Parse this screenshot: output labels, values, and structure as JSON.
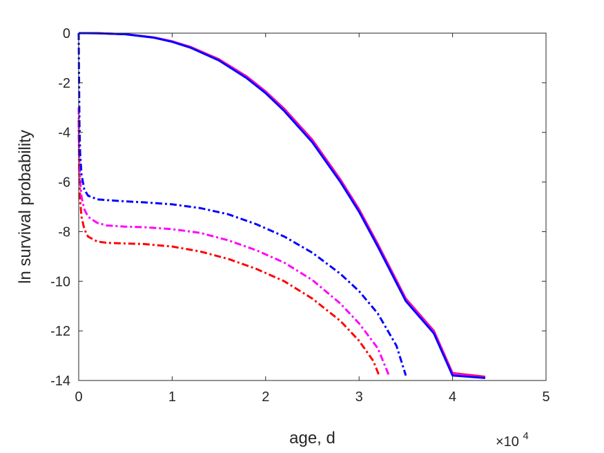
{
  "chart_data": {
    "type": "line",
    "xlabel": "age, d",
    "ylabel": "ln survival probability",
    "x_multiplier": {
      "base": "×10",
      "exponent": "4"
    },
    "xlim": [
      0,
      50000
    ],
    "ylim": [
      -14,
      0
    ],
    "xticks": [
      0,
      10000,
      20000,
      30000,
      40000,
      50000
    ],
    "xtick_labels": [
      "0",
      "1",
      "2",
      "3",
      "4",
      "5"
    ],
    "yticks": [
      0,
      -2,
      -4,
      -6,
      -8,
      -10,
      -12,
      -14
    ],
    "ytick_labels": [
      "0",
      "-2",
      "-4",
      "-6",
      "-8",
      "-10",
      "-12",
      "-14"
    ],
    "grid": false,
    "box": true,
    "series": [
      {
        "color": "#ff0000",
        "style": "solid",
        "points": [
          [
            0,
            0
          ],
          [
            2000,
            -0.003
          ],
          [
            5000,
            -0.04
          ],
          [
            8000,
            -0.17
          ],
          [
            10000,
            -0.33
          ],
          [
            12000,
            -0.56
          ],
          [
            15000,
            -1.05
          ],
          [
            18000,
            -1.75
          ],
          [
            20000,
            -2.35
          ],
          [
            22000,
            -3.05
          ],
          [
            25000,
            -4.3
          ],
          [
            28000,
            -5.9
          ],
          [
            30000,
            -7.1
          ],
          [
            32000,
            -8.5
          ],
          [
            35000,
            -10.7
          ],
          [
            38000,
            -12.0
          ],
          [
            40000,
            -13.7
          ],
          [
            43500,
            -13.85
          ]
        ]
      },
      {
        "color": "#ff00ff",
        "style": "solid",
        "points": [
          [
            0,
            0
          ],
          [
            2000,
            -0.003
          ],
          [
            5000,
            -0.04
          ],
          [
            8000,
            -0.17
          ],
          [
            10000,
            -0.33
          ],
          [
            12000,
            -0.57
          ],
          [
            15000,
            -1.07
          ],
          [
            18000,
            -1.77
          ],
          [
            20000,
            -2.37
          ],
          [
            22000,
            -3.08
          ],
          [
            25000,
            -4.33
          ],
          [
            28000,
            -5.93
          ],
          [
            30000,
            -7.13
          ],
          [
            32000,
            -8.53
          ],
          [
            35000,
            -10.73
          ],
          [
            38000,
            -12.03
          ],
          [
            40000,
            -13.73
          ],
          [
            43500,
            -13.88
          ]
        ]
      },
      {
        "color": "#0000ff",
        "style": "solid",
        "points": [
          [
            0,
            0
          ],
          [
            2000,
            -0.003
          ],
          [
            5000,
            -0.045
          ],
          [
            8000,
            -0.18
          ],
          [
            10000,
            -0.35
          ],
          [
            12000,
            -0.59
          ],
          [
            15000,
            -1.1
          ],
          [
            18000,
            -1.82
          ],
          [
            20000,
            -2.42
          ],
          [
            22000,
            -3.14
          ],
          [
            25000,
            -4.4
          ],
          [
            28000,
            -6.0
          ],
          [
            30000,
            -7.2
          ],
          [
            32000,
            -8.6
          ],
          [
            35000,
            -10.8
          ],
          [
            38000,
            -12.1
          ],
          [
            40000,
            -13.8
          ],
          [
            43500,
            -13.9
          ]
        ]
      },
      {
        "color": "#ff0000",
        "style": "dashdot",
        "points": [
          [
            0,
            -3.5
          ],
          [
            50,
            -5.6
          ],
          [
            150,
            -6.7
          ],
          [
            300,
            -7.4
          ],
          [
            600,
            -7.9
          ],
          [
            1000,
            -8.2
          ],
          [
            2000,
            -8.4
          ],
          [
            3000,
            -8.45
          ],
          [
            5000,
            -8.48
          ],
          [
            7000,
            -8.5
          ],
          [
            10000,
            -8.6
          ],
          [
            13000,
            -8.8
          ],
          [
            16000,
            -9.1
          ],
          [
            19000,
            -9.5
          ],
          [
            22000,
            -10.0
          ],
          [
            25000,
            -10.7
          ],
          [
            28000,
            -11.6
          ],
          [
            30000,
            -12.4
          ],
          [
            31500,
            -13.2
          ],
          [
            32200,
            -13.85
          ]
        ]
      },
      {
        "color": "#ff00ff",
        "style": "dashdot",
        "points": [
          [
            0,
            -3.0
          ],
          [
            50,
            -4.8
          ],
          [
            150,
            -5.9
          ],
          [
            300,
            -6.6
          ],
          [
            600,
            -7.1
          ],
          [
            1000,
            -7.4
          ],
          [
            2000,
            -7.65
          ],
          [
            3000,
            -7.75
          ],
          [
            5000,
            -7.8
          ],
          [
            7000,
            -7.82
          ],
          [
            10000,
            -7.9
          ],
          [
            13000,
            -8.05
          ],
          [
            16000,
            -8.35
          ],
          [
            19000,
            -8.75
          ],
          [
            22000,
            -9.25
          ],
          [
            25000,
            -9.95
          ],
          [
            28000,
            -10.9
          ],
          [
            30000,
            -11.7
          ],
          [
            32000,
            -12.7
          ],
          [
            33200,
            -13.8
          ]
        ]
      },
      {
        "color": "#0000ff",
        "style": "dashdot",
        "points": [
          [
            0,
            0
          ],
          [
            30,
            -1.5
          ],
          [
            80,
            -3.6
          ],
          [
            150,
            -4.8
          ],
          [
            300,
            -5.7
          ],
          [
            600,
            -6.3
          ],
          [
            1000,
            -6.55
          ],
          [
            2000,
            -6.7
          ],
          [
            3000,
            -6.73
          ],
          [
            5000,
            -6.78
          ],
          [
            7000,
            -6.82
          ],
          [
            10000,
            -6.9
          ],
          [
            13000,
            -7.05
          ],
          [
            16000,
            -7.3
          ],
          [
            19000,
            -7.7
          ],
          [
            22000,
            -8.2
          ],
          [
            25000,
            -8.85
          ],
          [
            28000,
            -9.7
          ],
          [
            30000,
            -10.4
          ],
          [
            32000,
            -11.3
          ],
          [
            34000,
            -12.6
          ],
          [
            35000,
            -13.8
          ]
        ]
      }
    ]
  }
}
